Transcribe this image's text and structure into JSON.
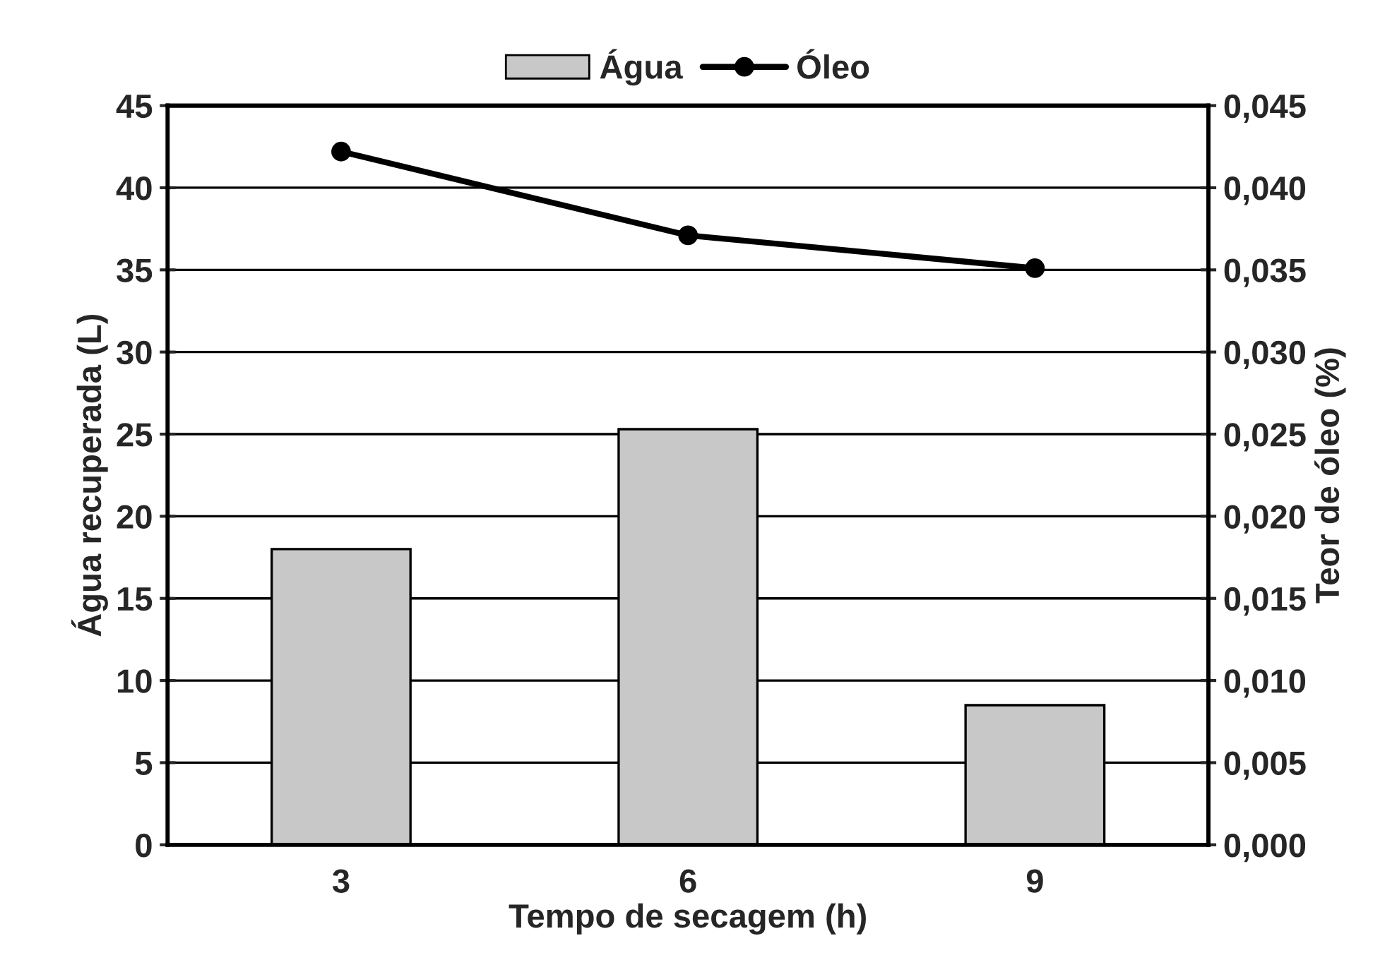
{
  "chart_data": {
    "type": "bar",
    "xlabel": "Tempo de secagem (h)",
    "ylabel": "Água recuperada (L)",
    "y2label": "Teor de óleo (%)",
    "categories": [
      "3",
      "6",
      "9"
    ],
    "series": [
      {
        "name": "Água",
        "color": "#c8c8c8",
        "values": [
          18,
          25.3,
          8.5
        ]
      },
      {
        "name": "Óleo",
        "type": "line",
        "axis": "y2",
        "color": "#000000",
        "marker": "circle",
        "values": [
          0.0422,
          0.0371,
          0.0351
        ]
      }
    ],
    "ylim": [
      0,
      45
    ],
    "yticks": [
      0,
      5,
      10,
      15,
      20,
      25,
      30,
      35,
      40,
      45
    ],
    "y2lim": [
      0,
      0.045
    ],
    "y2ticks": [
      {
        "value": 0,
        "label": "0,000"
      },
      {
        "value": 0.005,
        "label": "0,005"
      },
      {
        "value": 0.01,
        "label": "0,010"
      },
      {
        "value": 0.015,
        "label": "0,015"
      },
      {
        "value": 0.02,
        "label": "0,020"
      },
      {
        "value": 0.025,
        "label": "0,025"
      },
      {
        "value": 0.03,
        "label": "0,030"
      },
      {
        "value": 0.035,
        "label": "0,035"
      },
      {
        "value": 0.04,
        "label": "0,040"
      },
      {
        "value": 0.045,
        "label": "0,045"
      }
    ],
    "grid": "y",
    "legend": "top"
  }
}
